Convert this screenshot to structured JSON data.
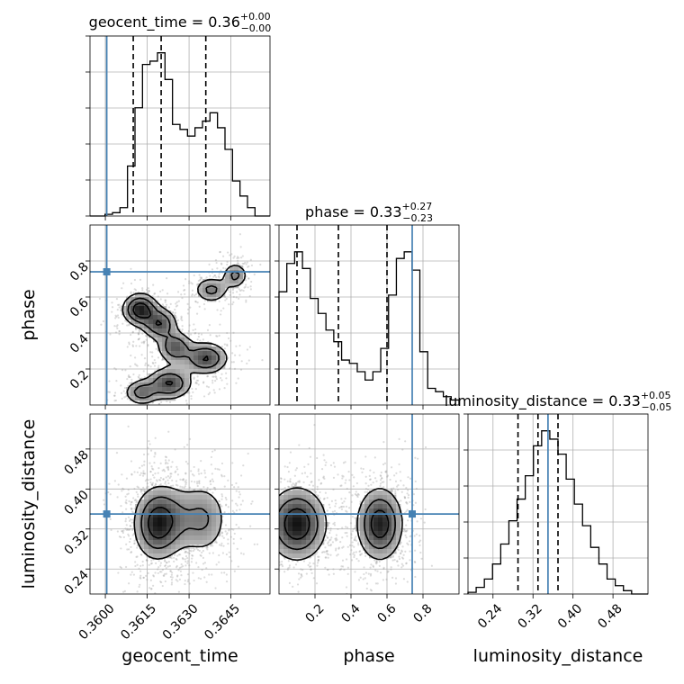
{
  "colors": {
    "truth": "#4682b4",
    "hist": "#000000",
    "grid": "#b0b0b0",
    "scatter": "#9a9a9a"
  },
  "chart_data": {
    "type": "corner",
    "parameters": [
      "geocent_time",
      "phase",
      "luminosity_distance"
    ],
    "titles": [
      {
        "name": "geocent_time",
        "eq": " = ",
        "median": "0.36",
        "plus": "+0.00",
        "minus": "−0.00"
      },
      {
        "name": "phase",
        "eq": " = ",
        "median": "0.33",
        "plus": "+0.27",
        "minus": "−0.23"
      },
      {
        "name": "luminosity_distance",
        "eq": " = ",
        "median": "0.33",
        "plus": "+0.05",
        "minus": "−0.05"
      }
    ],
    "axis_labels": {
      "x": [
        "geocent_time",
        "phase",
        "luminosity_distance"
      ],
      "y": [
        "phase",
        "luminosity_distance"
      ]
    },
    "ranges": {
      "geocent_time": [
        0.35945,
        0.3659
      ],
      "phase": [
        0.0,
        1.0
      ],
      "luminosity_distance": [
        0.19,
        0.55
      ]
    },
    "ticks": {
      "geocent_time": {
        "values": [
          0.36,
          0.3615,
          0.363,
          0.3645
        ],
        "labels": [
          "0.3600",
          "0.3615",
          "0.3630",
          "0.3645"
        ]
      },
      "phase": {
        "values": [
          0.2,
          0.4,
          0.6,
          0.8
        ],
        "labels": [
          "0.2",
          "0.4",
          "0.6",
          "0.8"
        ]
      },
      "luminosity_distance": {
        "values": [
          0.24,
          0.32,
          0.4,
          0.48
        ],
        "labels": [
          "0.24",
          "0.32",
          "0.40",
          "0.48"
        ]
      }
    },
    "truths": {
      "geocent_time": 0.36005,
      "phase": 0.74,
      "luminosity_distance": 0.35
    },
    "quantiles": {
      "geocent_time": [
        0.361,
        0.362,
        0.3636
      ],
      "phase": [
        0.1,
        0.33,
        0.6
      ],
      "luminosity_distance": [
        0.29,
        0.33,
        0.37
      ]
    },
    "histograms": {
      "geocent_time": {
        "range": [
          0.35945,
          0.3659
        ],
        "counts": [
          0.0,
          0.0,
          0.01,
          0.02,
          0.05,
          0.3,
          0.65,
          0.91,
          0.93,
          0.98,
          0.82,
          0.55,
          0.52,
          0.48,
          0.53,
          0.57,
          0.62,
          0.53,
          0.4,
          0.21,
          0.12,
          0.05,
          0.0,
          0.0
        ]
      },
      "phase": {
        "range": [
          0.0,
          1.0
        ],
        "counts": [
          0.68,
          0.85,
          0.92,
          0.82,
          0.64,
          0.55,
          0.45,
          0.38,
          0.27,
          0.25,
          0.2,
          0.15,
          0.2,
          0.34,
          0.66,
          0.88,
          0.92,
          0.81,
          0.32,
          0.1,
          0.08,
          0.05,
          0.03
        ]
      },
      "luminosity_distance": {
        "range": [
          0.19,
          0.55
        ],
        "counts": [
          0.01,
          0.04,
          0.09,
          0.18,
          0.3,
          0.44,
          0.57,
          0.71,
          0.89,
          0.98,
          0.93,
          0.84,
          0.69,
          0.54,
          0.41,
          0.28,
          0.18,
          0.09,
          0.05,
          0.02,
          0.0,
          0.0
        ]
      }
    },
    "density_2d": {
      "geocent_time_phase": [
        {
          "x": 0.36125,
          "y": 0.53,
          "s": 0.00035,
          "t": 0.05,
          "w": 1.0
        },
        {
          "x": 0.36195,
          "y": 0.45,
          "s": 0.00035,
          "t": 0.05,
          "w": 0.75
        },
        {
          "x": 0.3625,
          "y": 0.32,
          "s": 0.00035,
          "t": 0.05,
          "w": 0.7
        },
        {
          "x": 0.3636,
          "y": 0.26,
          "s": 0.00045,
          "t": 0.05,
          "w": 0.8
        },
        {
          "x": 0.3623,
          "y": 0.12,
          "s": 0.00045,
          "t": 0.05,
          "w": 0.8
        },
        {
          "x": 0.3613,
          "y": 0.07,
          "s": 0.00035,
          "t": 0.04,
          "w": 0.6
        },
        {
          "x": 0.3638,
          "y": 0.64,
          "s": 0.00035,
          "t": 0.04,
          "w": 0.55
        },
        {
          "x": 0.36465,
          "y": 0.72,
          "s": 0.00025,
          "t": 0.04,
          "w": 0.55
        }
      ],
      "geocent_time_luminosity_distance": [
        {
          "x": 0.3618,
          "y": 0.33,
          "s": 0.00045,
          "t": 0.04,
          "w": 1.0
        },
        {
          "x": 0.3624,
          "y": 0.34,
          "s": 0.0005,
          "t": 0.04,
          "w": 0.5
        },
        {
          "x": 0.3635,
          "y": 0.34,
          "s": 0.0005,
          "t": 0.04,
          "w": 0.6
        }
      ],
      "phase_luminosity_distance": [
        {
          "x": 0.1,
          "y": 0.33,
          "s": 0.09,
          "t": 0.04,
          "w": 1.0
        },
        {
          "x": 0.56,
          "y": 0.33,
          "s": 0.07,
          "t": 0.04,
          "w": 0.95
        }
      ]
    },
    "contour_levels": [
      0.2,
      0.45,
      0.75
    ]
  }
}
